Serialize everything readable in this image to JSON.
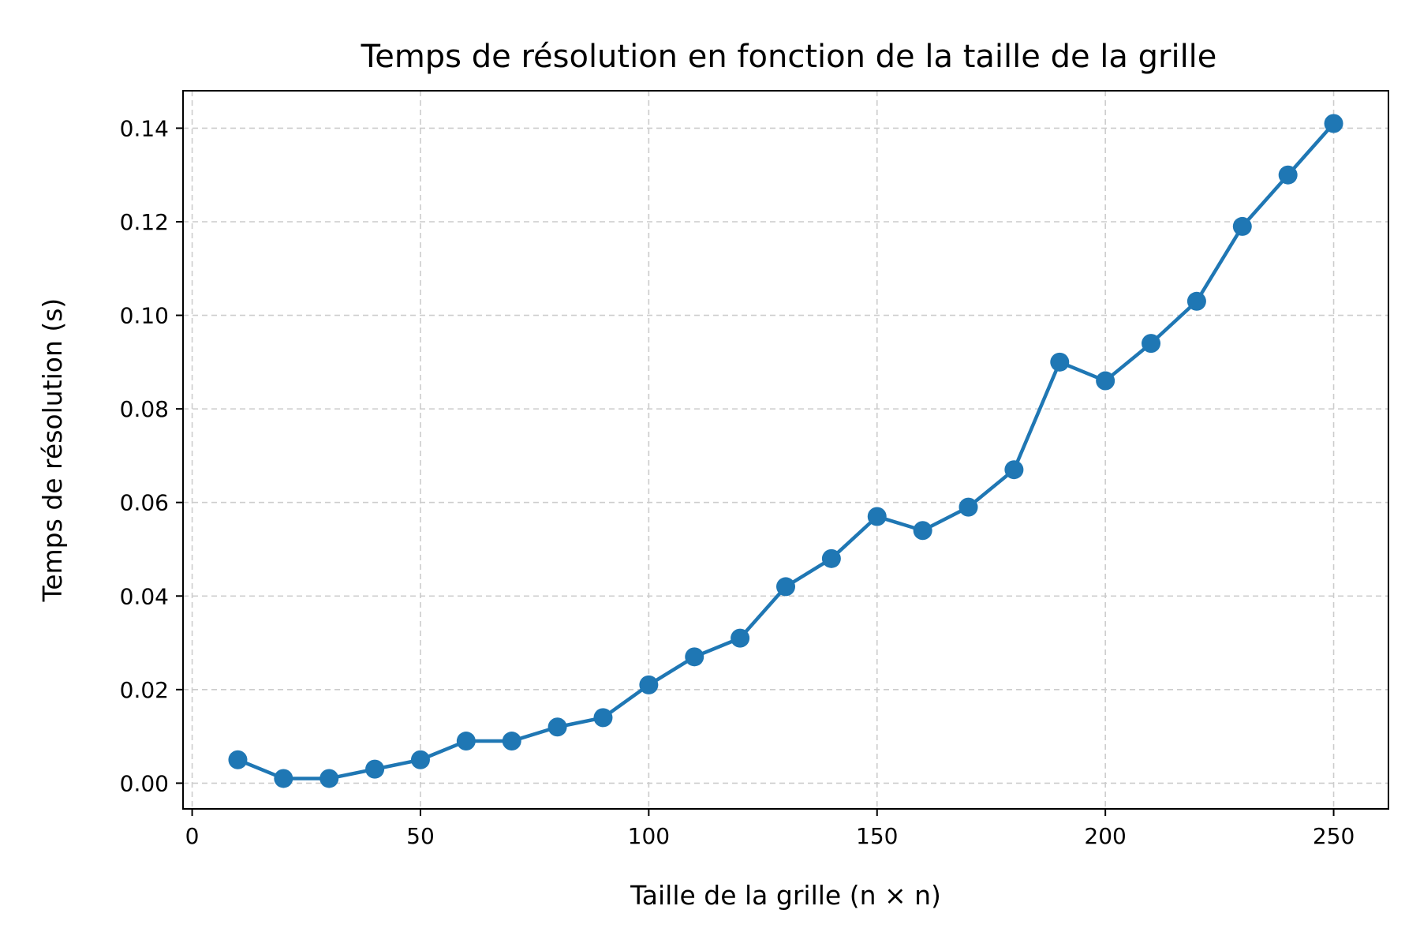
{
  "chart_data": {
    "type": "line",
    "title": "Temps de résolution en fonction de la taille de la grille",
    "xlabel": "Taille de la grille (n × n)",
    "ylabel": "Temps de résolution (s)",
    "xlim": [
      -2,
      262
    ],
    "ylim": [
      -0.0055,
      0.148
    ],
    "xticks": [
      0,
      50,
      100,
      150,
      200,
      250
    ],
    "xtick_labels": [
      "0",
      "50",
      "100",
      "150",
      "200",
      "250"
    ],
    "yticks": [
      0.0,
      0.02,
      0.04,
      0.06,
      0.08,
      0.1,
      0.12,
      0.14
    ],
    "ytick_labels": [
      "0.00",
      "0.02",
      "0.04",
      "0.06",
      "0.08",
      "0.10",
      "0.12",
      "0.14"
    ],
    "grid": true,
    "color": "#1f77b4",
    "series": [
      {
        "x": [
          10,
          20,
          30,
          40,
          50,
          60,
          70,
          80,
          90,
          100,
          110,
          120,
          130,
          140,
          150,
          160,
          170,
          180,
          190,
          200,
          210,
          220,
          230,
          240,
          250
        ],
        "values": [
          0.005,
          0.001,
          0.001,
          0.003,
          0.005,
          0.009,
          0.009,
          0.012,
          0.014,
          0.021,
          0.027,
          0.031,
          0.042,
          0.048,
          0.057,
          0.054,
          0.059,
          0.067,
          0.09,
          0.086,
          0.094,
          0.103,
          0.119,
          0.13,
          0.141
        ]
      }
    ]
  }
}
